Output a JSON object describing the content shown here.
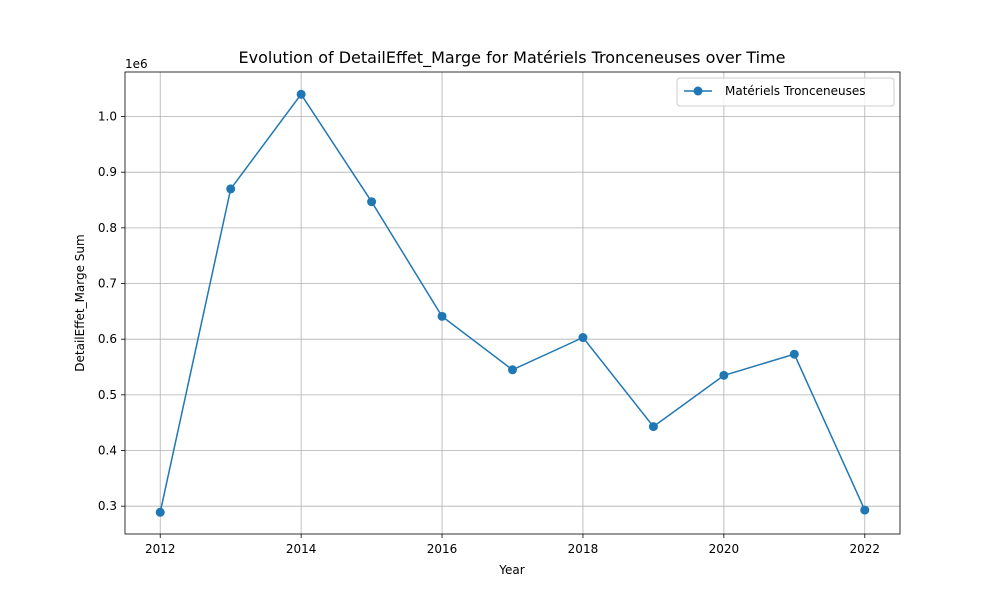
{
  "chart_data": {
    "type": "line",
    "title": "Evolution of DetailEffet_Marge for Matériels Tronceneuses over Time",
    "xlabel": "Year",
    "ylabel": "DetailEffet_Marge Sum",
    "y_offset_label": "1e6",
    "x": [
      2012,
      2013,
      2014,
      2015,
      2016,
      2017,
      2018,
      2019,
      2020,
      2021,
      2022
    ],
    "series": [
      {
        "name": "Matériels Tronceneuses",
        "color": "#1f77b4",
        "marker": "circle",
        "values": [
          289000,
          870000,
          1040000,
          847000,
          641000,
          545000,
          603000,
          443000,
          535000,
          573000,
          293000
        ]
      }
    ],
    "xlim": [
      2011.5,
      2022.5
    ],
    "ylim": [
      250000,
      1080000
    ],
    "xticks": [
      2012,
      2014,
      2016,
      2018,
      2020,
      2022
    ],
    "xtick_labels": [
      "2012",
      "2014",
      "2016",
      "2018",
      "2020",
      "2022"
    ],
    "yticks": [
      300000,
      400000,
      500000,
      600000,
      700000,
      800000,
      900000,
      1000000
    ],
    "ytick_labels": [
      "0.3",
      "0.4",
      "0.5",
      "0.6",
      "0.7",
      "0.8",
      "0.9",
      "1.0"
    ],
    "grid": true,
    "legend_position": "top-right"
  }
}
